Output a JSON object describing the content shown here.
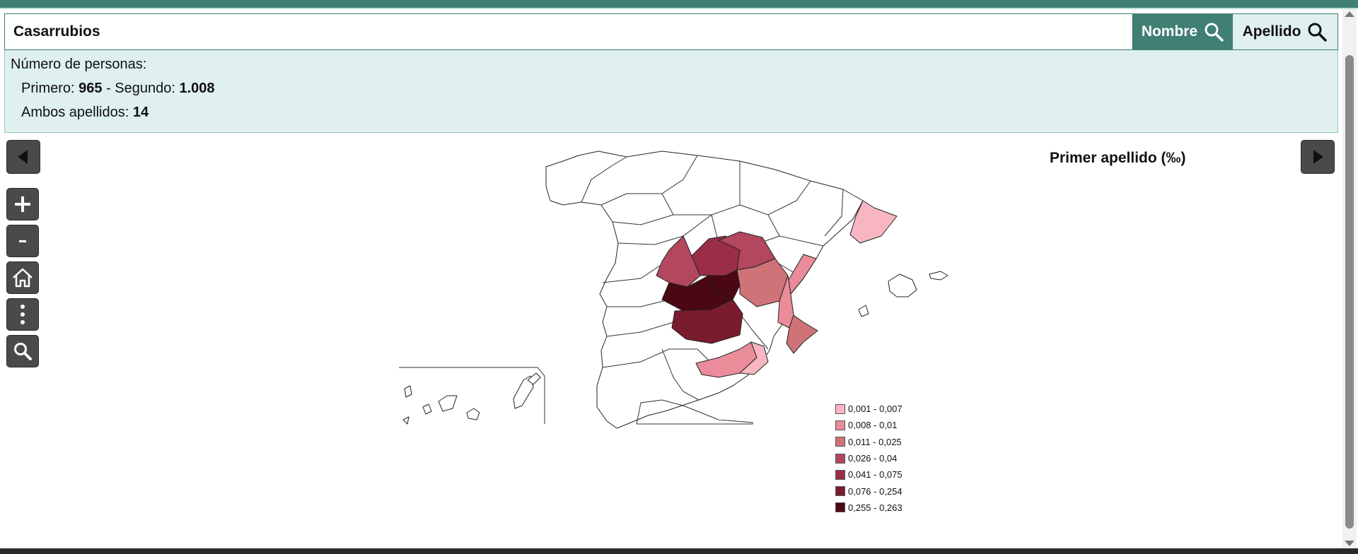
{
  "search": {
    "value": "Casarrubios"
  },
  "buttons": {
    "nombre_label": "Nombre",
    "apellido_label": "Apellido"
  },
  "info": {
    "title": "Número de personas:",
    "primero_label": "Primero:",
    "primero_value": "965",
    "separator": "- Segundo:",
    "segundo_value": "1.008",
    "ambos_label": "Ambos apellidos:",
    "ambos_value": "14"
  },
  "map": {
    "title": "Primer apellido (‰)",
    "legend": [
      {
        "label": "0,001 - 0,007",
        "color": "#f7b6c2"
      },
      {
        "label": "0,008 - 0,01",
        "color": "#ea8c9a"
      },
      {
        "label": "0,011 - 0,025",
        "color": "#cf7379"
      },
      {
        "label": "0,026 - 0,04",
        "color": "#b2475e"
      },
      {
        "label": "0,041 - 0,075",
        "color": "#9a2e47"
      },
      {
        "label": "0,076 - 0,254",
        "color": "#7a1c2e"
      },
      {
        "label": "0,255 - 0,263",
        "color": "#4a0714"
      }
    ]
  },
  "icons": {
    "prev": "triangle-left-icon",
    "next": "triangle-right-icon",
    "zoom_in": "plus-icon",
    "zoom_out": "minus-icon",
    "home": "home-icon",
    "more": "vertical-ellipsis-icon",
    "search": "magnifier-icon"
  },
  "colors": {
    "accent": "#3f7f74",
    "panel": "#dff0ee",
    "tool_bg": "#4a4a4a"
  }
}
